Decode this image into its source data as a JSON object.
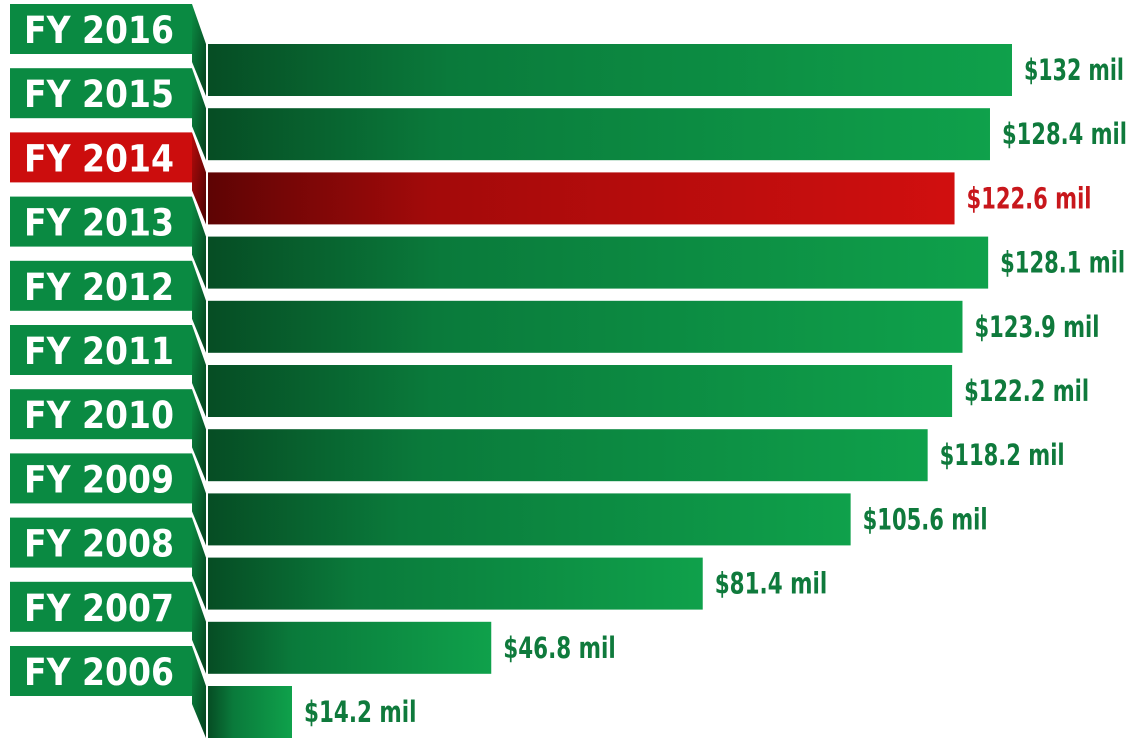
{
  "chart_data": {
    "type": "bar",
    "orientation": "horizontal",
    "title": "",
    "xlabel": "",
    "ylabel": "",
    "categories": [
      "FY 2016",
      "FY 2015",
      "FY 2014",
      "FY 2013",
      "FY 2012",
      "FY 2011",
      "FY 2010",
      "FY 2009",
      "FY 2008",
      "FY 2007",
      "FY 2006"
    ],
    "values": [
      132,
      128.4,
      122.6,
      128.1,
      123.9,
      122.2,
      118.2,
      105.6,
      81.4,
      46.8,
      14.2
    ],
    "value_labels": [
      "$132 mil",
      "$128.4 mil",
      "$122.6 mil",
      "$128.1 mil",
      "$123.9 mil",
      "$122.2 mil",
      "$118.2 mil",
      "$105.6 mil",
      "$81.4 mil",
      "$46.8 mil",
      "$14.2 mil"
    ],
    "highlight_category": "FY 2014",
    "grid": false,
    "legend": "none",
    "colors": {
      "bar": "#0a8a42",
      "bar_dark": "#075f2c",
      "bar_highlight": "#cc0d0d",
      "bar_highlight_dark": "#7a0606",
      "label": "#0f7a3c",
      "label_highlight": "#c8171c"
    }
  }
}
